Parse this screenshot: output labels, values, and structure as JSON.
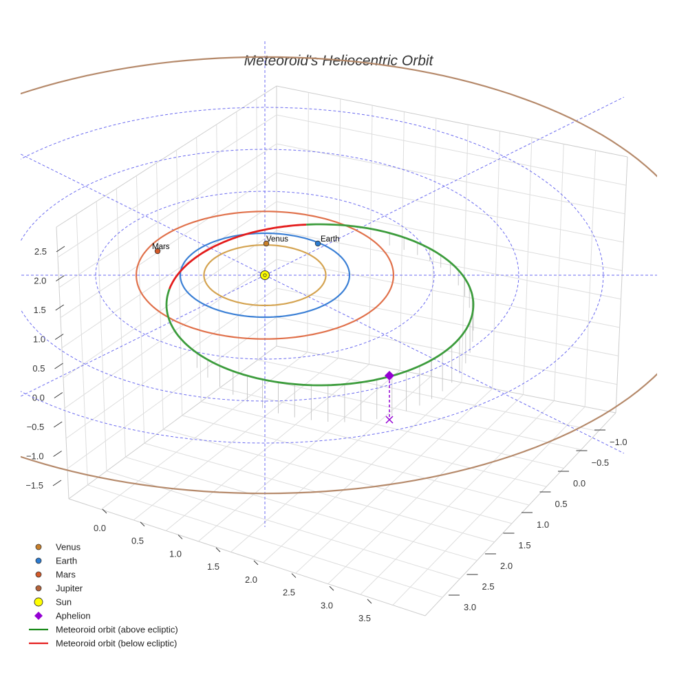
{
  "chart_data": {
    "type": "line",
    "title": "Meteoroid's Heliocentric Orbit",
    "projection": "3d",
    "grid": true,
    "legend_position": "bottom-left",
    "axes": {
      "x": {
        "ticks": [
          "0.0",
          "0.5",
          "1.0",
          "1.5",
          "2.0",
          "2.5",
          "3.0",
          "3.5"
        ],
        "range": [
          -0.1,
          3.8
        ]
      },
      "y": {
        "ticks": [
          "−1.0",
          "−0.5",
          "0.0",
          "0.5",
          "1.0",
          "1.5",
          "2.0",
          "2.5",
          "3.0"
        ],
        "range": [
          -1.2,
          3.1
        ]
      },
      "z": {
        "ticks": [
          "−1.5",
          "−1.0",
          "−0.5",
          "0.0",
          "0.5",
          "1.0",
          "1.5",
          "2.0",
          "2.5"
        ],
        "range": [
          -1.6,
          2.7
        ]
      }
    },
    "planet_orbits": [
      {
        "name": "Venus",
        "a_au": 0.72,
        "color": "#d4a350"
      },
      {
        "name": "Earth",
        "a_au": 1.0,
        "color": "#3a7fd5"
      },
      {
        "name": "Mars",
        "a_au": 1.52,
        "color": "#e0704a"
      },
      {
        "name": "Jupiter",
        "a_au": 5.2,
        "color": "#b5896a"
      }
    ],
    "planets": [
      {
        "name": "Venus",
        "label": "Venus",
        "color": "#c87f2a"
      },
      {
        "name": "Earth",
        "label": "Earth",
        "color": "#2b7bd1"
      },
      {
        "name": "Mars",
        "label": "Mars",
        "color": "#d35a2a"
      },
      {
        "name": "Jupiter",
        "label": "",
        "color": "#b5633a"
      }
    ],
    "sun": {
      "name": "Sun",
      "color": "#ffff00"
    },
    "meteoroid_orbit": {
      "segments": [
        {
          "name": "Meteoroid orbit (above ecliptic)",
          "color": "#3c9c3c"
        },
        {
          "name": "Meteoroid orbit (below ecliptic)",
          "color": "#e41c1c"
        }
      ]
    },
    "aphelion": {
      "name": "Aphelion",
      "color": "#9400d3"
    },
    "guide_circles_au": [
      1,
      2,
      3,
      4
    ],
    "legend": [
      {
        "label": "Venus",
        "kind": "dot",
        "color": "#c87f2a"
      },
      {
        "label": "Earth",
        "kind": "dot",
        "color": "#2b7bd1"
      },
      {
        "label": "Mars",
        "kind": "dot",
        "color": "#d35a2a"
      },
      {
        "label": "Jupiter",
        "kind": "dot",
        "color": "#b5633a"
      },
      {
        "label": "Sun",
        "kind": "sun",
        "color": "#ffff00"
      },
      {
        "label": "Aphelion",
        "kind": "diamond",
        "color": "#9400d3"
      },
      {
        "label": "Meteoroid orbit (above ecliptic)",
        "kind": "line",
        "color": "#1a8a1a"
      },
      {
        "label": "Meteoroid orbit (below ecliptic)",
        "kind": "line",
        "color": "#e41c1c"
      }
    ]
  }
}
